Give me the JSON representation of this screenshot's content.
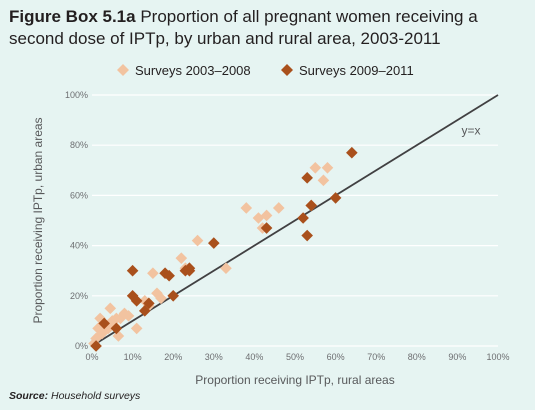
{
  "title": {
    "prefix": "Figure Box 5.1a",
    "text": " Proportion of all pregnant women receiving a second dose of IPTp, by urban and rural area, 2003-2011"
  },
  "source": {
    "label": "Source:",
    "text": " Household surveys"
  },
  "colors": {
    "background": "#e6f4f2",
    "early": "#f2c3a0",
    "late": "#a9501c",
    "diagonal": "#414042"
  },
  "chart_data": {
    "type": "scatter",
    "xlabel": "Proportion receiving IPTp, rural areas",
    "ylabel": "Proportion receiving IPTp, urban areas",
    "xlim": [
      0,
      100
    ],
    "ylim": [
      0,
      100
    ],
    "x_ticks": [
      "0%",
      "10%",
      "20%",
      "30%",
      "40%",
      "50%",
      "60%",
      "70%",
      "80%",
      "90%",
      "100%"
    ],
    "y_ticks": [
      "0%",
      "20%",
      "40%",
      "60%",
      "80%",
      "100%"
    ],
    "grid": true,
    "legend_position": "top-left",
    "reference_line": {
      "label": "y=x",
      "from": [
        0,
        0
      ],
      "to": [
        100,
        100
      ]
    },
    "series": [
      {
        "name": "Surveys 2003–2008",
        "marker": "diamond",
        "points": [
          [
            0.5,
            1
          ],
          [
            1,
            3
          ],
          [
            1.5,
            7
          ],
          [
            2,
            11
          ],
          [
            2.5,
            5
          ],
          [
            3,
            9
          ],
          [
            4,
            7
          ],
          [
            4.5,
            15
          ],
          [
            5,
            10
          ],
          [
            5.5,
            8
          ],
          [
            6,
            11
          ],
          [
            6.5,
            4
          ],
          [
            7,
            11
          ],
          [
            8,
            13
          ],
          [
            9,
            12
          ],
          [
            11,
            7
          ],
          [
            13,
            18
          ],
          [
            14,
            16
          ],
          [
            15,
            29
          ],
          [
            16,
            21
          ],
          [
            17,
            19
          ],
          [
            22,
            35
          ],
          [
            23,
            31
          ],
          [
            26,
            42
          ],
          [
            33,
            31
          ],
          [
            38,
            55
          ],
          [
            41,
            51
          ],
          [
            42,
            47
          ],
          [
            43,
            52
          ],
          [
            46,
            55
          ],
          [
            54,
            56
          ],
          [
            55,
            71
          ],
          [
            57,
            66
          ],
          [
            58,
            71
          ]
        ]
      },
      {
        "name": "Surveys 2009–2011",
        "marker": "diamond",
        "points": [
          [
            1,
            0
          ],
          [
            3,
            9
          ],
          [
            6,
            7
          ],
          [
            10,
            30
          ],
          [
            10,
            20
          ],
          [
            11,
            18
          ],
          [
            13,
            14
          ],
          [
            14,
            17
          ],
          [
            18,
            29
          ],
          [
            19,
            28
          ],
          [
            20,
            20
          ],
          [
            23,
            30
          ],
          [
            24,
            31
          ],
          [
            24,
            30
          ],
          [
            30,
            41
          ],
          [
            43,
            47
          ],
          [
            52,
            51
          ],
          [
            53,
            67
          ],
          [
            53,
            44
          ],
          [
            54,
            56
          ],
          [
            60,
            59
          ],
          [
            64,
            77
          ]
        ]
      }
    ]
  }
}
